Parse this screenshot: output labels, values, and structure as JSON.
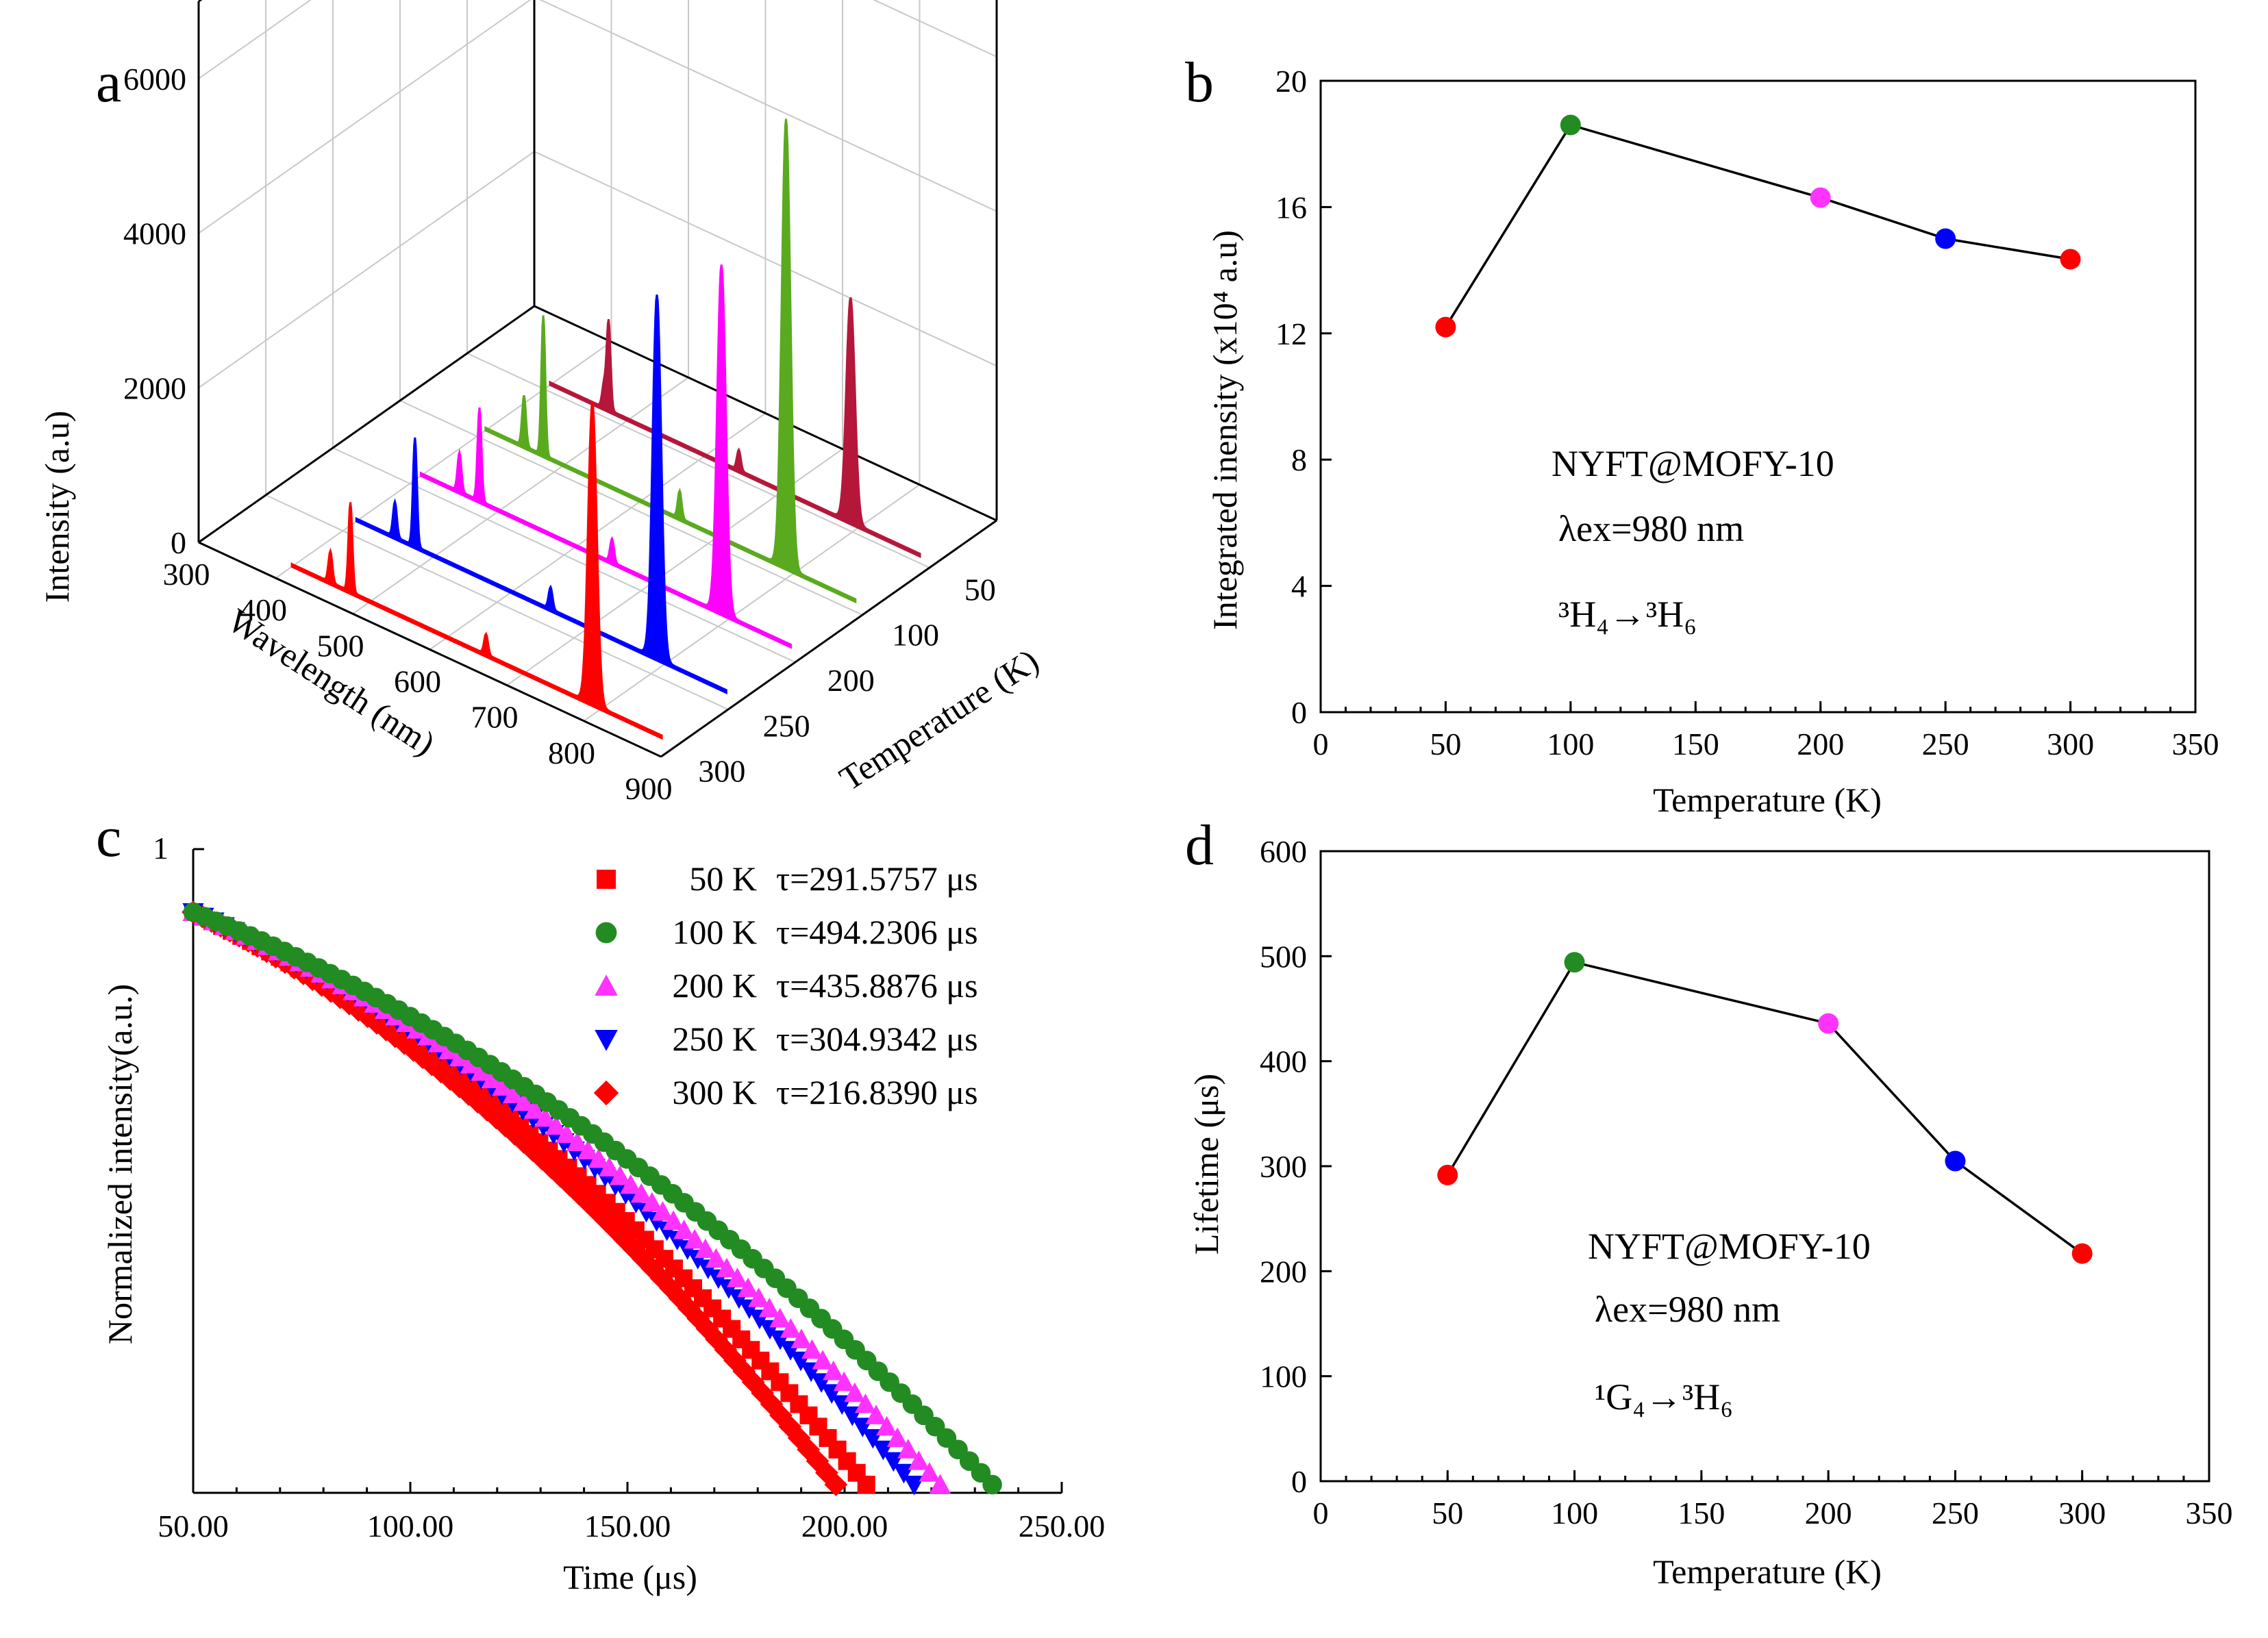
{
  "chart_data": [
    {
      "panel": "a",
      "type": "area",
      "zlabel": "Intensity  (a.u)",
      "xlabel": "Wavelength  (nm)",
      "ylabel": "Temperature  (K)",
      "wavelength_ticks": [
        300,
        400,
        500,
        600,
        700,
        800,
        900
      ],
      "temperature_ticks": [
        50,
        100,
        200,
        250,
        300
      ],
      "intensity_ticks": [
        0,
        2000,
        4000,
        6000
      ],
      "wavelength_range": [
        300,
        900
      ],
      "intensity_range": [
        0,
        7000
      ],
      "series": [
        {
          "name": "50 K",
          "color": "#b5173a",
          "peaks": [
            {
              "wl": 470,
              "i": 300
            },
            {
              "wl": 476,
              "i": 1150
            },
            {
              "wl": 645,
              "i": 260
            },
            {
              "wl": 790,
              "i": 2900
            }
          ]
        },
        {
          "name": "100 K",
          "color": "#5aaa1f",
          "peaks": [
            {
              "wl": 450,
              "i": 650
            },
            {
              "wl": 475,
              "i": 1800
            },
            {
              "wl": 652,
              "i": 350
            },
            {
              "wl": 790,
              "i": 5800
            }
          ]
        },
        {
          "name": "200 K",
          "color": "#ff00ff",
          "peaks": [
            {
              "wl": 450,
              "i": 500
            },
            {
              "wl": 476,
              "i": 1200
            },
            {
              "wl": 648,
              "i": 300
            },
            {
              "wl": 790,
              "i": 4500
            }
          ]
        },
        {
          "name": "250 K",
          "color": "#0000ff",
          "peaks": [
            {
              "wl": 450,
              "i": 450
            },
            {
              "wl": 476,
              "i": 1400
            },
            {
              "wl": 652,
              "i": 280
            },
            {
              "wl": 790,
              "i": 4700
            }
          ]
        },
        {
          "name": "300 K",
          "color": "#ff0000",
          "peaks": [
            {
              "wl": 450,
              "i": 400
            },
            {
              "wl": 476,
              "i": 1150
            },
            {
              "wl": 652,
              "i": 260
            },
            {
              "wl": 790,
              "i": 3900
            }
          ]
        }
      ]
    },
    {
      "panel": "b",
      "type": "line",
      "xlabel": "Temperature (K)",
      "ylabel": "Integrated inensity (x10⁴ a.u)",
      "xlim": [
        0,
        350
      ],
      "ylim": [
        0,
        20
      ],
      "xticks": [
        0,
        50,
        100,
        150,
        200,
        250,
        300,
        350
      ],
      "yticks": [
        0,
        4,
        8,
        12,
        16,
        20
      ],
      "x": [
        50,
        100,
        200,
        250,
        300
      ],
      "y": [
        12.2,
        18.6,
        16.3,
        15.0,
        14.35
      ],
      "point_colors": [
        "#ff0000",
        "#228b22",
        "#ff33ff",
        "#0000ff",
        "#ff0000"
      ],
      "annotations": {
        "sample": "NYFT@MOFY-10",
        "excitation": "λex=980 nm",
        "transition": "³H₄→³H₆"
      }
    },
    {
      "panel": "c",
      "type": "scatter",
      "xlabel": "Time (μs)",
      "ylabel": "Normalized intensity(a.u.)",
      "xlim": [
        50,
        250
      ],
      "xticks": [
        "50.00",
        "100.00",
        "150.00",
        "200.00",
        "250.00"
      ],
      "yticks": [
        "1"
      ],
      "legend_position": "top-right",
      "series": [
        {
          "name": "50 K",
          "tau": "τ=291.5757 μs",
          "tau_value": 291.5757,
          "color": "#ff0000",
          "marker": "square",
          "end_time": 205
        },
        {
          "name": "100 K",
          "tau": "τ=494.2306 μs",
          "tau_value": 494.2306,
          "color": "#228b22",
          "marker": "circle",
          "end_time": 234
        },
        {
          "name": "200 K",
          "tau": "τ=435.8876 μs",
          "tau_value": 435.8876,
          "color": "#ff33ff",
          "marker": "triangle-up",
          "end_time": 222
        },
        {
          "name": "250 K",
          "tau": "τ=304.9342 μs",
          "tau_value": 304.9342,
          "color": "#0000ff",
          "marker": "triangle-down",
          "end_time": 216
        },
        {
          "name": "300 K",
          "tau": "τ=216.8390 μs",
          "tau_value": 216.839,
          "color": "#ff0000",
          "marker": "diamond",
          "end_time": 198
        }
      ]
    },
    {
      "panel": "d",
      "type": "line",
      "xlabel": "Temperature (K)",
      "ylabel": "Lifetime (μs)",
      "xlim": [
        0,
        350
      ],
      "ylim": [
        0,
        600
      ],
      "xticks": [
        0,
        50,
        100,
        150,
        200,
        250,
        300,
        350
      ],
      "yticks": [
        0,
        100,
        200,
        300,
        400,
        500,
        600
      ],
      "x": [
        50,
        100,
        200,
        250,
        300
      ],
      "y": [
        291.6,
        494.2,
        435.9,
        304.9,
        216.8
      ],
      "point_colors": [
        "#ff0000",
        "#228b22",
        "#ff33ff",
        "#0000ff",
        "#ff0000"
      ],
      "annotations": {
        "sample": "NYFT@MOFY-10",
        "excitation": "λex=980 nm",
        "transition": "¹G₄→³H₆"
      }
    }
  ],
  "panel_letters": [
    "a",
    "b",
    "c",
    "d"
  ]
}
